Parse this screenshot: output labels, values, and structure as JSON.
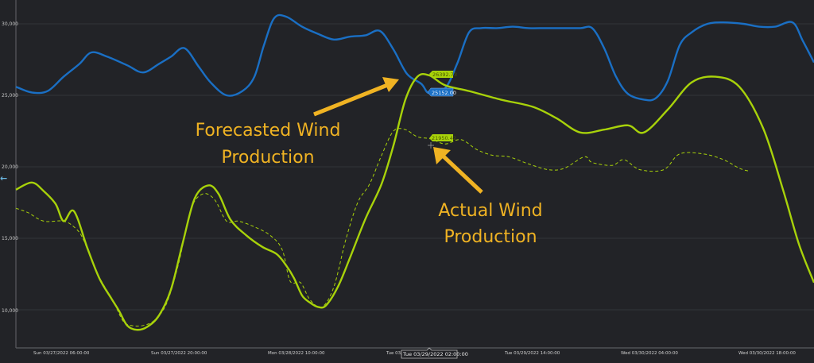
{
  "chart_data": {
    "type": "line",
    "title": "",
    "xlabel": "",
    "ylabel": "",
    "ylim": [
      7500,
      31500
    ],
    "grid": true,
    "legend": "none",
    "y_ticks": [
      "10,000",
      "15,000",
      "20,000",
      "25,000",
      "30,000"
    ],
    "x_ticks": [
      "Sun 03/27/2022 06:00:00",
      "Sun 03/27/2022 20:00:00",
      "Mon 03/28/2022 10:00:00",
      "Tue 03/29/2022 00:00:00",
      "Tue 03/29/2022 14:00:00",
      "Wed 03/30/2022 04:00:00",
      "Wed 03/30/2022 18:00:00"
    ],
    "x_tick_hidden_prefix": "Tue 03/",
    "series": [
      {
        "name": "Blue series (upper)",
        "color": "#1a6fc4",
        "style": "solid",
        "points": [
          [
            20,
            25600
          ],
          [
            40,
            25200
          ],
          [
            60,
            25300
          ],
          [
            80,
            26300
          ],
          [
            100,
            27200
          ],
          [
            115,
            28000
          ],
          [
            135,
            27700
          ],
          [
            160,
            27100
          ],
          [
            180,
            26600
          ],
          [
            200,
            27200
          ],
          [
            215,
            27700
          ],
          [
            232,
            28300
          ],
          [
            250,
            27000
          ],
          [
            265,
            25900
          ],
          [
            285,
            25000
          ],
          [
            305,
            25300
          ],
          [
            320,
            26300
          ],
          [
            332,
            28500
          ],
          [
            345,
            30400
          ],
          [
            360,
            30500
          ],
          [
            380,
            29800
          ],
          [
            400,
            29300
          ],
          [
            420,
            28900
          ],
          [
            440,
            29100
          ],
          [
            460,
            29200
          ],
          [
            478,
            29500
          ],
          [
            495,
            28200
          ],
          [
            512,
            26500
          ],
          [
            530,
            25800
          ],
          [
            540,
            25152
          ],
          [
            560,
            25500
          ],
          [
            575,
            27200
          ],
          [
            590,
            29400
          ],
          [
            605,
            29700
          ],
          [
            625,
            29700
          ],
          [
            645,
            29800
          ],
          [
            665,
            29700
          ],
          [
            685,
            29700
          ],
          [
            705,
            29700
          ],
          [
            730,
            29700
          ],
          [
            745,
            29700
          ],
          [
            760,
            28300
          ],
          [
            775,
            26300
          ],
          [
            790,
            25100
          ],
          [
            810,
            24700
          ],
          [
            825,
            24800
          ],
          [
            840,
            26000
          ],
          [
            855,
            28500
          ],
          [
            870,
            29400
          ],
          [
            890,
            30000
          ],
          [
            910,
            30100
          ],
          [
            935,
            30000
          ],
          [
            955,
            29800
          ],
          [
            975,
            29800
          ],
          [
            997,
            30100
          ],
          [
            1010,
            28800
          ],
          [
            1024,
            27300
          ]
        ]
      },
      {
        "name": "Forecasted Wind Production",
        "color": "#a8d20a",
        "style": "solid",
        "points": [
          [
            20,
            18400
          ],
          [
            40,
            18900
          ],
          [
            55,
            18300
          ],
          [
            70,
            17400
          ],
          [
            80,
            16200
          ],
          [
            93,
            16900
          ],
          [
            110,
            14300
          ],
          [
            125,
            12200
          ],
          [
            140,
            10800
          ],
          [
            150,
            9900
          ],
          [
            160,
            8900
          ],
          [
            172,
            8600
          ],
          [
            185,
            8800
          ],
          [
            200,
            9600
          ],
          [
            215,
            11400
          ],
          [
            230,
            14700
          ],
          [
            245,
            17800
          ],
          [
            262,
            18700
          ],
          [
            275,
            18100
          ],
          [
            290,
            16300
          ],
          [
            310,
            15200
          ],
          [
            330,
            14400
          ],
          [
            348,
            13900
          ],
          [
            360,
            13100
          ],
          [
            370,
            12200
          ],
          [
            380,
            11000
          ],
          [
            390,
            10500
          ],
          [
            400,
            10200
          ],
          [
            410,
            10300
          ],
          [
            425,
            11600
          ],
          [
            440,
            13600
          ],
          [
            460,
            16400
          ],
          [
            480,
            18800
          ],
          [
            495,
            21500
          ],
          [
            510,
            24700
          ],
          [
            525,
            26300
          ],
          [
            540,
            26392
          ],
          [
            560,
            25700
          ],
          [
            590,
            25300
          ],
          [
            630,
            24700
          ],
          [
            670,
            24200
          ],
          [
            700,
            23400
          ],
          [
            730,
            22400
          ],
          [
            760,
            22600
          ],
          [
            790,
            22900
          ],
          [
            810,
            22400
          ],
          [
            840,
            24000
          ],
          [
            870,
            25900
          ],
          [
            900,
            26300
          ],
          [
            930,
            25600
          ],
          [
            960,
            22700
          ],
          [
            985,
            18400
          ],
          [
            1005,
            14600
          ],
          [
            1024,
            11900
          ]
        ]
      },
      {
        "name": "Actual Wind Production",
        "color": "#a8d20a",
        "style": "dashed",
        "points": [
          [
            20,
            17100
          ],
          [
            35,
            16800
          ],
          [
            55,
            16200
          ],
          [
            80,
            16200
          ],
          [
            95,
            15700
          ],
          [
            105,
            14900
          ],
          [
            120,
            12800
          ],
          [
            135,
            11300
          ],
          [
            145,
            10300
          ],
          [
            155,
            9200
          ],
          [
            165,
            8900
          ],
          [
            180,
            8900
          ],
          [
            195,
            9300
          ],
          [
            210,
            10500
          ],
          [
            225,
            13300
          ],
          [
            240,
            17000
          ],
          [
            255,
            18100
          ],
          [
            270,
            17700
          ],
          [
            285,
            16200
          ],
          [
            300,
            16200
          ],
          [
            320,
            15800
          ],
          [
            340,
            15200
          ],
          [
            355,
            14200
          ],
          [
            365,
            12000
          ],
          [
            378,
            11900
          ],
          [
            390,
            10700
          ],
          [
            405,
            10200
          ],
          [
            420,
            11600
          ],
          [
            435,
            14900
          ],
          [
            450,
            17500
          ],
          [
            465,
            18800
          ],
          [
            480,
            20800
          ],
          [
            495,
            22500
          ],
          [
            510,
            22600
          ],
          [
            525,
            22100
          ],
          [
            542,
            21950
          ],
          [
            560,
            21600
          ],
          [
            580,
            21900
          ],
          [
            600,
            21200
          ],
          [
            620,
            20800
          ],
          [
            640,
            20700
          ],
          [
            665,
            20200
          ],
          [
            690,
            19800
          ],
          [
            710,
            19900
          ],
          [
            735,
            20700
          ],
          [
            745,
            20300
          ],
          [
            770,
            20100
          ],
          [
            785,
            20500
          ],
          [
            805,
            19800
          ],
          [
            835,
            19800
          ],
          [
            855,
            20900
          ],
          [
            885,
            20900
          ],
          [
            910,
            20500
          ],
          [
            930,
            19900
          ],
          [
            942,
            19700
          ]
        ]
      }
    ],
    "value_flags": [
      {
        "series": "Forecasted Wind Production",
        "value": "26392.73",
        "color": "#a8d20a"
      },
      {
        "series": "Blue series (upper)",
        "value": "25152.00",
        "color": "#1a6fc4"
      },
      {
        "series": "Actual Wind Production",
        "value": "21950.42",
        "color": "#a8d20a"
      }
    ],
    "crosshair_tooltip": "Tue 03/29/2022 02:00:00",
    "annotations": [
      {
        "text_line1": "Forecasted Wind",
        "text_line2": "Production",
        "color": "#f0b323"
      },
      {
        "text_line1": "Actual Wind",
        "text_line2": "Production",
        "color": "#f0b323"
      }
    ]
  },
  "ui": {
    "back_arrow_icon": "←",
    "background": "#222327",
    "grid_color": "#33343a",
    "axis_color": "#5a5b60"
  }
}
